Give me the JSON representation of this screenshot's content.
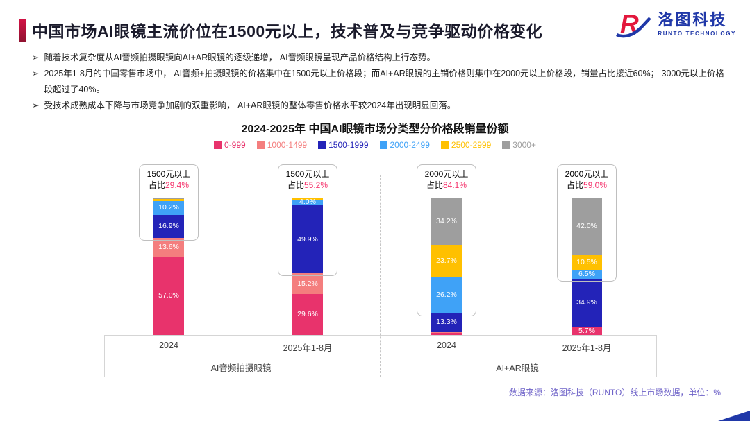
{
  "page": {
    "title": "中国市场AI眼镜主流价位在1500元以上，技术普及与竞争驱动价格变化",
    "bullet_marker": "➢",
    "bullets": [
      "随着技术复杂度从AI音频拍摄眼镜向AI+AR眼镜的逐级递增， AI音频眼镜呈现产品价格结构上行态势。",
      "2025年1-8月的中国零售市场中， AI音频+拍摄眼镜的价格集中在1500元以上价格段；而AI+AR眼镜的主销价格则集中在2000元以上价格段，销量占比接近60%； 3000元以上价格段超过了40%。",
      "受技术成熟成本下降与市场竞争加剧的双重影响， AI+AR眼镜的整体零售价格水平较2024年出现明显回落。"
    ],
    "footer": "数据来源：洛图科技（RUNTO）线上市场数据，单位：%"
  },
  "logo": {
    "name": "洛图科技",
    "subtitle": "RUNTO TECHNOLOGY",
    "brand_blue": "#2038A8",
    "brand_red": "#E3173C"
  },
  "chart_data": {
    "type": "bar",
    "stacked": true,
    "title": "2024-2025年 中国AI眼镜市场分类型分价格段销量份额",
    "unit": "%",
    "ylim": [
      0,
      100
    ],
    "legend_position": "top",
    "legend": [
      "0-999",
      "1000-1499",
      "1500-1999",
      "2000-2499",
      "2500-2999",
      "3000+"
    ],
    "series_colors": {
      "0-999": "#E8336C",
      "1000-1499": "#F47E7E",
      "1500-1999": "#2323B8",
      "2000-2499": "#3FA2F7",
      "2500-2999": "#FFC000",
      "3000+": "#9E9E9E"
    },
    "groups": [
      {
        "name": "AI音频拍摄眼镜",
        "bars": [
          {
            "category": "2024",
            "callout": {
              "line1": "1500元以上",
              "prefix": "占比",
              "value": "29.4%"
            },
            "segments": [
              {
                "series": "0-999",
                "value": 57.0,
                "label": "57.0%"
              },
              {
                "series": "1000-1499",
                "value": 13.6,
                "label": "13.6%"
              },
              {
                "series": "1500-1999",
                "value": 16.9,
                "label": "16.9%"
              },
              {
                "series": "2000-2499",
                "value": 10.2,
                "label": "10.2%"
              },
              {
                "series": "2500-2999",
                "value": 1.2,
                "label": null
              },
              {
                "series": "3000+",
                "value": 1.1,
                "label": null
              }
            ]
          },
          {
            "category": "2025年1-8月",
            "callout": {
              "line1": "1500元以上",
              "prefix": "占比",
              "value": "55.2%"
            },
            "segments": [
              {
                "series": "0-999",
                "value": 29.6,
                "label": "29.6%"
              },
              {
                "series": "1000-1499",
                "value": 15.2,
                "label": "15.2%"
              },
              {
                "series": "1500-1999",
                "value": 49.9,
                "label": "49.9%"
              },
              {
                "series": "2000-2499",
                "value": 4.0,
                "label": "4.0%"
              },
              {
                "series": "2500-2999",
                "value": 0.8,
                "label": null
              },
              {
                "series": "3000+",
                "value": 0.5,
                "label": null
              }
            ]
          }
        ]
      },
      {
        "name": "AI+AR眼镜",
        "bars": [
          {
            "category": "2024",
            "callout": {
              "line1": "2000元以上",
              "prefix": "占比",
              "value": "84.1%"
            },
            "segments": [
              {
                "series": "0-999",
                "value": 1.5,
                "label": null
              },
              {
                "series": "1000-1499",
                "value": 1.1,
                "label": null
              },
              {
                "series": "1500-1999",
                "value": 13.3,
                "label": "13.3%"
              },
              {
                "series": "2000-2499",
                "value": 26.2,
                "label": "26.2%"
              },
              {
                "series": "2500-2999",
                "value": 23.7,
                "label": "23.7%"
              },
              {
                "series": "3000+",
                "value": 34.2,
                "label": "34.2%"
              }
            ]
          },
          {
            "category": "2025年1-8月",
            "callout": {
              "line1": "2000元以上",
              "prefix": "占比",
              "value": "59.0%"
            },
            "segments": [
              {
                "series": "0-999",
                "value": 5.7,
                "label": "5.7%"
              },
              {
                "series": "1000-1499",
                "value": 0.4,
                "label": null
              },
              {
                "series": "1500-1999",
                "value": 34.9,
                "label": "34.9%"
              },
              {
                "series": "2000-2499",
                "value": 6.5,
                "label": "6.5%"
              },
              {
                "series": "2500-2999",
                "value": 10.5,
                "label": "10.5%"
              },
              {
                "series": "3000+",
                "value": 42.0,
                "label": "42.0%"
              }
            ]
          }
        ]
      }
    ]
  }
}
